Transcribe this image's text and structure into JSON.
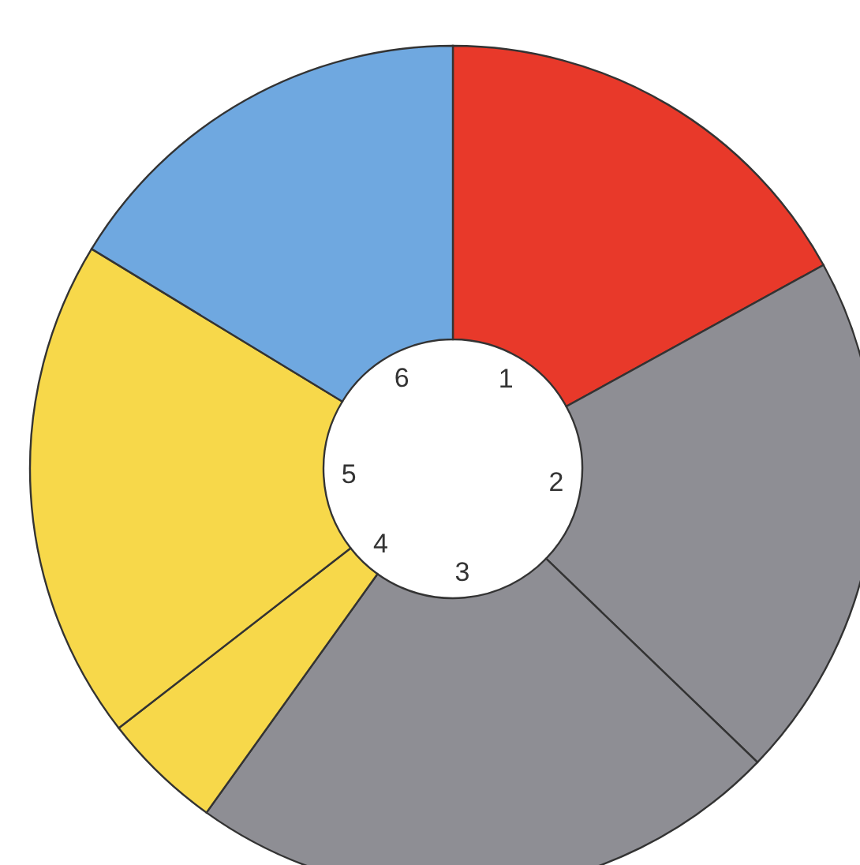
{
  "chart_data": {
    "type": "donut",
    "categories": [
      "1",
      "2",
      "3",
      "4",
      "5",
      "6"
    ],
    "values": [
      17,
      20.2,
      22.7,
      4.6,
      19.2,
      16.3
    ],
    "colors": [
      "#e8392a",
      "#8e8e94",
      "#8e8e94",
      "#f7d84a",
      "#f7d84a",
      "#6fa8e0"
    ]
  }
}
